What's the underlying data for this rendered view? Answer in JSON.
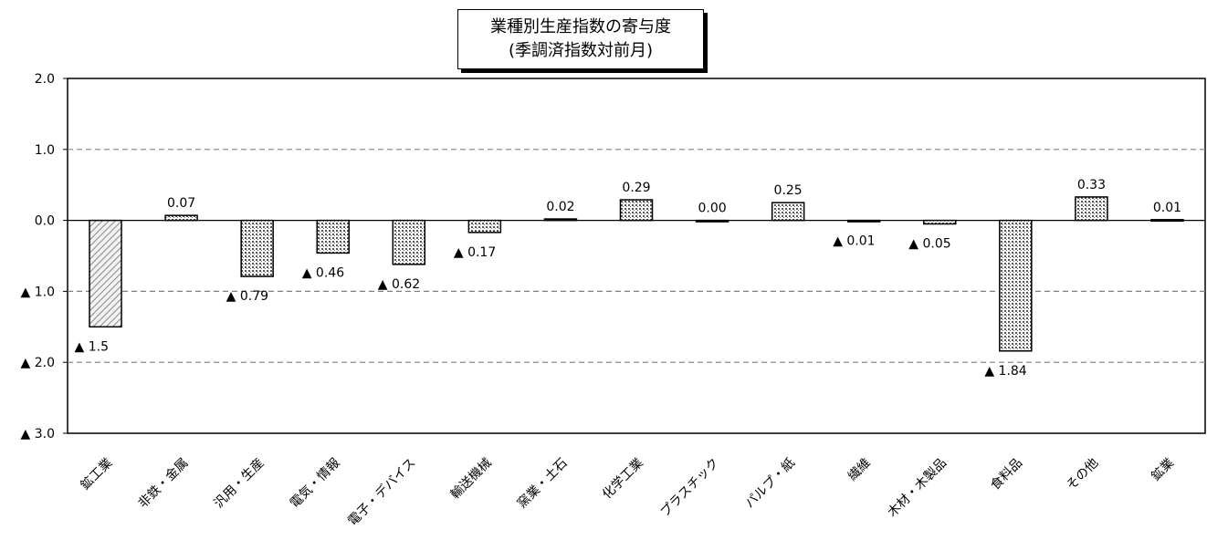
{
  "chart_data": {
    "type": "bar",
    "title": [
      "業種別生産指数の寄与度",
      "(季調済指数対前月)"
    ],
    "categories": [
      "鉱工業",
      "非鉄・金属",
      "汎用・生産",
      "電気・情報",
      "電子・デバイス",
      "輸送機械",
      "窯業・土石",
      "化学工業",
      "プラスチック",
      "パルプ・紙",
      "繊維",
      "木材・木製品",
      "食料品",
      "その他",
      "鉱業"
    ],
    "values": [
      -1.5,
      0.07,
      -0.79,
      -0.46,
      -0.62,
      -0.17,
      0.02,
      0.29,
      0.0,
      0.25,
      -0.01,
      -0.05,
      -1.84,
      0.33,
      0.01
    ],
    "value_labels": [
      "▲ 1.5",
      "0.07",
      "▲ 0.79",
      "▲ 0.46",
      "▲ 0.62",
      "▲ 0.17",
      "0.02",
      "0.29",
      "0.00",
      "0.25",
      "▲ 0.01",
      "▲ 0.05",
      "▲ 1.84",
      "0.33",
      "0.01"
    ],
    "ylim": [
      -3.0,
      2.0
    ],
    "yticks": [
      2.0,
      1.0,
      0.0,
      -1.0,
      -2.0,
      -3.0
    ],
    "ytick_labels": [
      "2.0",
      "1.0",
      "0.0",
      "▲ 1.0",
      "▲ 2.0",
      "▲ 3.0"
    ],
    "grid": true,
    "xlabel": "",
    "ylabel": ""
  }
}
